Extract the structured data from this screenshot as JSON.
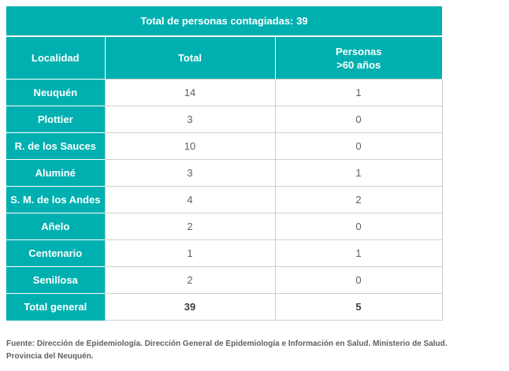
{
  "table": {
    "title": "Total de personas contagiadas: 39",
    "headers": {
      "localidad": "Localidad",
      "total": "Total",
      "personas_line1": "Personas",
      "personas_line2": ">60 años"
    },
    "rows": [
      {
        "localidad": "Neuquén",
        "total": "14",
        "personas": "1"
      },
      {
        "localidad": "Plottier",
        "total": "3",
        "personas": "0"
      },
      {
        "localidad": "R. de los Sauces",
        "total": "10",
        "personas": "0"
      },
      {
        "localidad": "Aluminé",
        "total": "3",
        "personas": "1"
      },
      {
        "localidad": "S. M. de los Andes",
        "total": "4",
        "personas": "2"
      },
      {
        "localidad": "Añelo",
        "total": "2",
        "personas": "0"
      },
      {
        "localidad": "Centenario",
        "total": "1",
        "personas": "1"
      },
      {
        "localidad": "Senillosa",
        "total": "2",
        "personas": "0"
      }
    ],
    "total_row": {
      "localidad": "Total general",
      "total": "39",
      "personas": "5"
    }
  },
  "footnote": "Fuente: Dirección de Epidemiología. Dirección General de Epidemiología e Información en Salud. Ministerio de Salud. Provincia del Neuquén.",
  "colors": {
    "accent": "#00b0b0",
    "text_muted": "#606060"
  }
}
